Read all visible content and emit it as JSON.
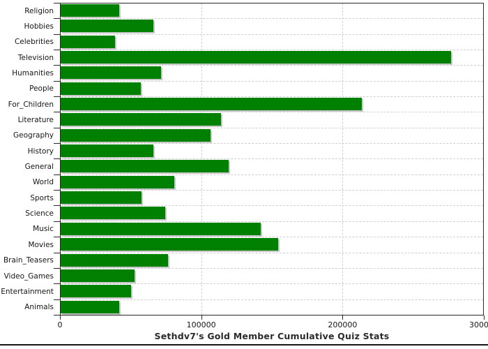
{
  "chart_data": {
    "type": "bar",
    "orientation": "horizontal",
    "title": "Sethdv7's Gold Member Cumulative Quiz Stats",
    "categories": [
      "Religion",
      "Hobbies",
      "Celebrities",
      "Television",
      "Humanities",
      "People",
      "For_Children",
      "Literature",
      "Geography",
      "History",
      "General",
      "World",
      "Sports",
      "Science",
      "Music",
      "Movies",
      "Brain_Teasers",
      "Video_Games",
      "Entertainment",
      "Animals"
    ],
    "values": [
      41500,
      65800,
      38800,
      277000,
      71500,
      56800,
      213800,
      113700,
      106300,
      65800,
      119100,
      80600,
      57500,
      74300,
      142300,
      154700,
      76300,
      52600,
      49800,
      41800
    ],
    "xlabel": "",
    "ylabel": "",
    "xlim": [
      0,
      300000
    ],
    "x_ticks": [
      0,
      100000,
      200000,
      300000
    ],
    "x_tick_labels": [
      "0",
      "100000",
      "200000",
      "300000"
    ],
    "grid": "dashed",
    "legend": "none",
    "colors": {
      "bar": "#008000",
      "bar_shadow": "#c8c8c8",
      "gridline": "#cfcfcf",
      "axis": "#282828",
      "text": "#151515",
      "title": "#2b2b2b"
    }
  }
}
